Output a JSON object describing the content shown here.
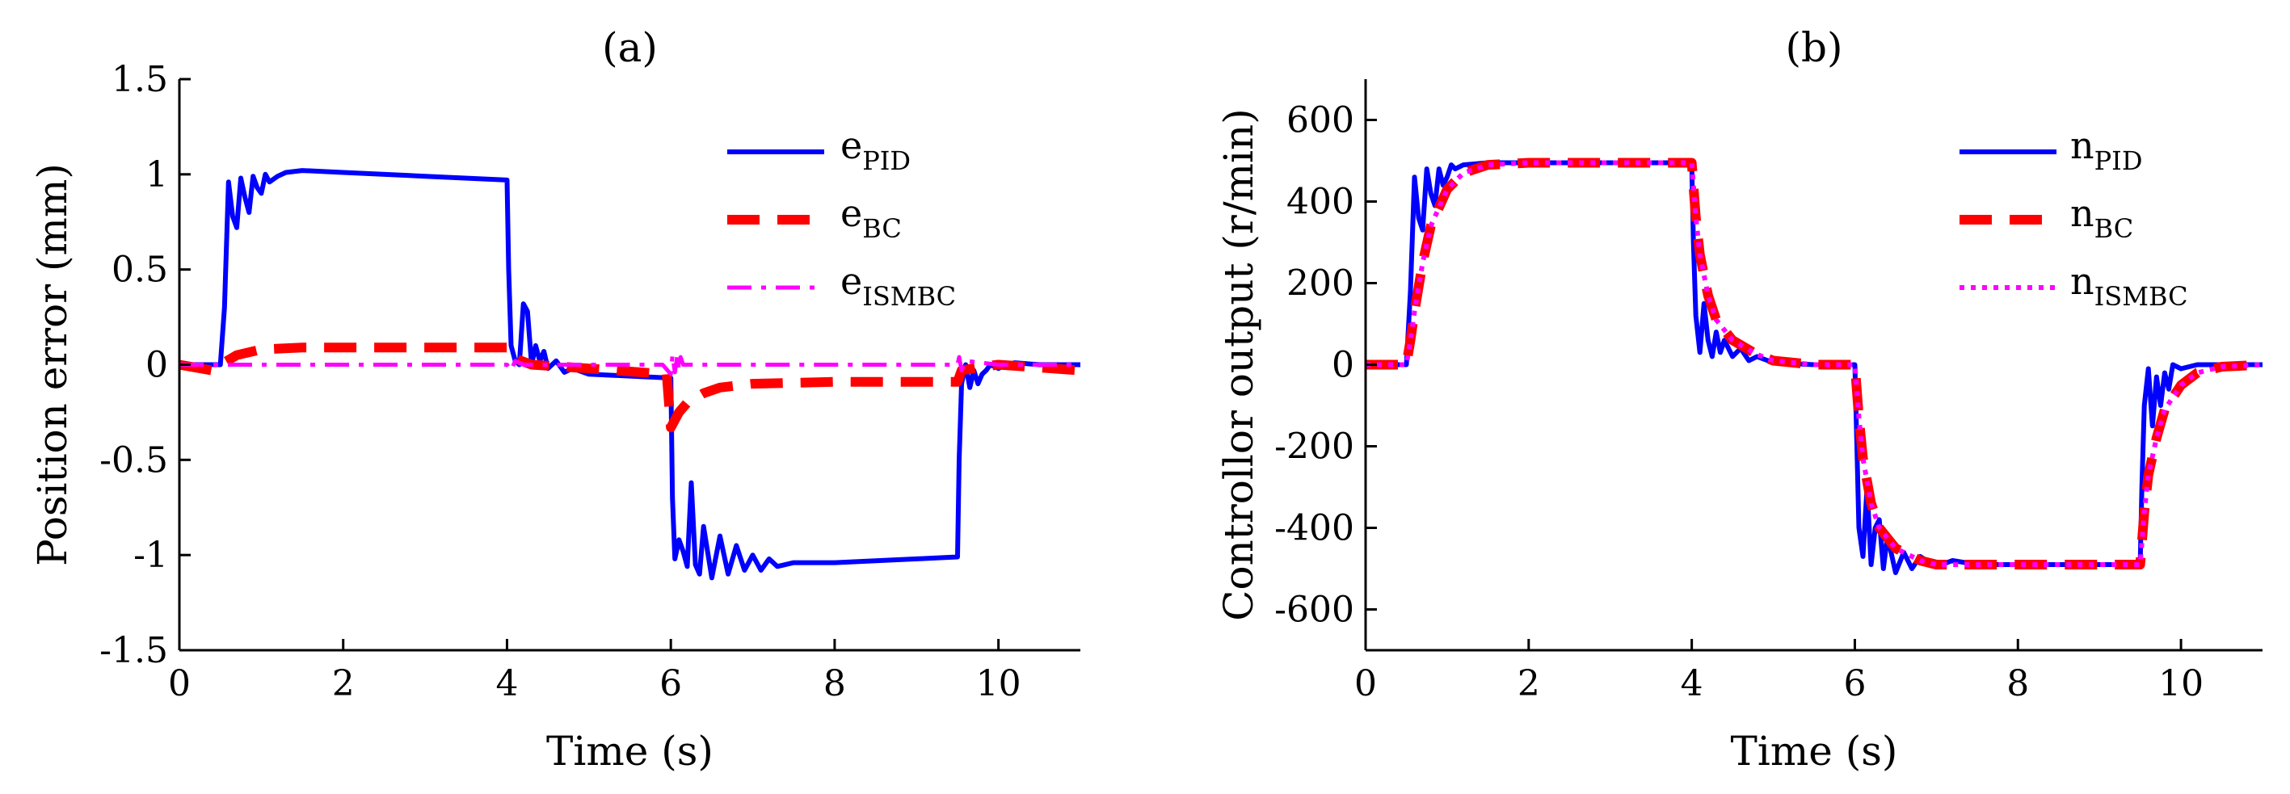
{
  "chart_data": [
    {
      "type": "line",
      "title": "(a)",
      "xlabel": "Time (s)",
      "ylabel": "Position error (mm)",
      "xlim": [
        0,
        11
      ],
      "ylim": [
        -1.5,
        1.5
      ],
      "xticks": [
        0,
        2,
        4,
        6,
        8,
        10
      ],
      "xtick_labels": [
        "0",
        "2",
        "4",
        "6",
        "8",
        "10"
      ],
      "yticks": [
        -1.5,
        -1,
        -0.5,
        0,
        0.5,
        1,
        1.5
      ],
      "ytick_labels": [
        "-1.5",
        "-1",
        "-0.5",
        "0",
        "0.5",
        "1",
        "1.5"
      ],
      "legend_position": "top-right",
      "series": [
        {
          "name": "e_PID",
          "label_main": "e",
          "label_sub": "PID",
          "color": "#0000ff",
          "style": "solid",
          "x": [
            0,
            0.5,
            0.55,
            0.6,
            0.65,
            0.7,
            0.75,
            0.8,
            0.85,
            0.9,
            0.95,
            1.0,
            1.05,
            1.1,
            1.2,
            1.3,
            1.5,
            2,
            3,
            4,
            4.02,
            4.05,
            4.1,
            4.15,
            4.2,
            4.25,
            4.3,
            4.35,
            4.4,
            4.45,
            4.5,
            4.6,
            4.7,
            4.8,
            5,
            5.5,
            6,
            6.02,
            6.05,
            6.1,
            6.15,
            6.2,
            6.25,
            6.3,
            6.35,
            6.4,
            6.5,
            6.6,
            6.7,
            6.8,
            6.9,
            7.0,
            7.1,
            7.2,
            7.3,
            7.5,
            8,
            9,
            9.5,
            9.52,
            9.55,
            9.6,
            9.65,
            9.7,
            9.75,
            9.8,
            9.85,
            9.9,
            10.0,
            10.1,
            10.2,
            10.5,
            11
          ],
          "y": [
            0,
            0,
            0.3,
            0.96,
            0.78,
            0.72,
            0.98,
            0.88,
            0.8,
            0.99,
            0.93,
            0.9,
            1.0,
            0.96,
            0.99,
            1.01,
            1.02,
            1.01,
            0.99,
            0.97,
            0.5,
            0.1,
            0.02,
            0.0,
            0.32,
            0.28,
            0.0,
            0.1,
            0.02,
            0.07,
            -0.02,
            0.02,
            -0.04,
            -0.02,
            -0.05,
            -0.06,
            -0.07,
            -0.7,
            -1.02,
            -0.92,
            -0.98,
            -1.06,
            -0.62,
            -1.05,
            -1.1,
            -0.85,
            -1.12,
            -0.9,
            -1.1,
            -0.95,
            -1.08,
            -1.0,
            -1.08,
            -1.02,
            -1.06,
            -1.04,
            -1.04,
            -1.02,
            -1.01,
            -0.5,
            -0.1,
            0.0,
            -0.12,
            -0.03,
            -0.1,
            -0.05,
            -0.03,
            0.0,
            -0.02,
            0.0,
            0.01,
            0.0,
            0.0
          ]
        },
        {
          "name": "e_BC",
          "label_main": "e",
          "label_sub": "BC",
          "color": "#ff0000",
          "style": "dashed",
          "x": [
            0,
            0.4,
            0.5,
            0.7,
            1.0,
            1.5,
            2,
            3,
            4,
            4.05,
            4.3,
            5,
            5.95,
            6.0,
            6.1,
            6.2,
            6.4,
            6.6,
            7,
            8,
            9,
            9.5,
            9.55,
            9.8,
            10,
            11
          ],
          "y": [
            0,
            -0.03,
            0.0,
            0.05,
            0.08,
            0.09,
            0.09,
            0.09,
            0.09,
            0.04,
            0.0,
            -0.02,
            -0.05,
            -0.33,
            -0.25,
            -0.2,
            -0.15,
            -0.12,
            -0.1,
            -0.09,
            -0.09,
            -0.09,
            -0.03,
            -0.01,
            0.0,
            -0.03
          ]
        },
        {
          "name": "e_ISMBC",
          "label_main": "e",
          "label_sub": "ISMBC",
          "color": "#ff00ff",
          "style": "dash-dot",
          "x": [
            0,
            0.5,
            1,
            2,
            3,
            4,
            4.05,
            4.1,
            4.2,
            5,
            5.9,
            6.0,
            6.02,
            6.05,
            6.08,
            6.1,
            6.12,
            6.15,
            6.3,
            7,
            8,
            9,
            9.5,
            9.52,
            9.55,
            9.6,
            10,
            11
          ],
          "y": [
            0,
            0,
            0,
            0,
            0,
            0,
            -0.03,
            0.02,
            0,
            0,
            0,
            -0.05,
            0.05,
            -0.04,
            0.05,
            -0.03,
            0.04,
            0.0,
            0.0,
            0,
            0,
            0,
            0.0,
            0.04,
            -0.03,
            0.02,
            0,
            0
          ]
        }
      ]
    },
    {
      "type": "line",
      "title": "(b)",
      "xlabel": "Time (s)",
      "ylabel": "Controllor output (r/min)",
      "xlim": [
        0,
        11
      ],
      "ylim": [
        -700,
        700
      ],
      "xticks": [
        0,
        2,
        4,
        6,
        8,
        10
      ],
      "xtick_labels": [
        "0",
        "2",
        "4",
        "6",
        "8",
        "10"
      ],
      "yticks": [
        -600,
        -400,
        -200,
        0,
        200,
        400,
        600
      ],
      "ytick_labels": [
        "-600",
        "-400",
        "-200",
        "0",
        "200",
        "400",
        "600"
      ],
      "legend_position": "top-right",
      "series": [
        {
          "name": "n_PID",
          "label_main": "n",
          "label_sub": "PID",
          "color": "#0000ff",
          "style": "solid",
          "x": [
            0,
            0.5,
            0.55,
            0.6,
            0.65,
            0.7,
            0.75,
            0.8,
            0.85,
            0.9,
            0.95,
            1.0,
            1.05,
            1.1,
            1.2,
            1.5,
            2,
            3,
            4,
            4.02,
            4.05,
            4.1,
            4.15,
            4.2,
            4.25,
            4.3,
            4.35,
            4.4,
            4.5,
            4.6,
            4.7,
            4.8,
            5,
            5.5,
            6,
            6.02,
            6.05,
            6.1,
            6.15,
            6.2,
            6.25,
            6.3,
            6.35,
            6.4,
            6.5,
            6.6,
            6.7,
            6.8,
            7.0,
            7.2,
            7.5,
            8,
            9,
            9.5,
            9.52,
            9.55,
            9.6,
            9.65,
            9.7,
            9.75,
            9.8,
            9.85,
            9.9,
            10.0,
            10.2,
            10.5,
            11
          ],
          "y": [
            0,
            0,
            180,
            460,
            360,
            330,
            480,
            420,
            390,
            480,
            440,
            460,
            490,
            480,
            490,
            495,
            495,
            495,
            495,
            300,
            120,
            30,
            150,
            60,
            20,
            80,
            30,
            60,
            20,
            40,
            10,
            20,
            5,
            0,
            0,
            -160,
            -400,
            -470,
            -300,
            -490,
            -400,
            -380,
            -500,
            -420,
            -510,
            -460,
            -500,
            -470,
            -495,
            -480,
            -490,
            -490,
            -490,
            -490,
            -300,
            -100,
            -10,
            -150,
            -30,
            -100,
            -20,
            -60,
            0,
            -10,
            0,
            0,
            0
          ]
        },
        {
          "name": "n_BC",
          "label_main": "n",
          "label_sub": "BC",
          "color": "#ff0000",
          "style": "dashed",
          "x": [
            0,
            0.5,
            0.55,
            0.6,
            0.7,
            0.8,
            1.0,
            1.2,
            1.5,
            2,
            3,
            4,
            4.05,
            4.1,
            4.2,
            4.3,
            4.5,
            4.8,
            5,
            5.5,
            6,
            6.05,
            6.1,
            6.2,
            6.3,
            6.5,
            6.8,
            7,
            7.5,
            8,
            9,
            9.5,
            9.55,
            9.6,
            9.7,
            9.8,
            10.0,
            10.2,
            10.5,
            11
          ],
          "y": [
            0,
            0,
            60,
            130,
            250,
            340,
            430,
            470,
            490,
            495,
            495,
            495,
            360,
            270,
            170,
            110,
            60,
            25,
            10,
            0,
            0,
            -130,
            -230,
            -340,
            -400,
            -450,
            -480,
            -490,
            -490,
            -490,
            -490,
            -490,
            -360,
            -270,
            -180,
            -110,
            -50,
            -20,
            -5,
            0
          ]
        },
        {
          "name": "n_ISMBC",
          "label_main": "n",
          "label_sub": "ISMBC",
          "color": "#ff00ff",
          "style": "dotted",
          "x": [
            0,
            0.5,
            0.55,
            0.6,
            0.7,
            0.8,
            1.0,
            1.2,
            1.5,
            2,
            3,
            4,
            4.05,
            4.1,
            4.2,
            4.3,
            4.5,
            4.8,
            5,
            5.5,
            6,
            6.05,
            6.1,
            6.2,
            6.3,
            6.5,
            6.8,
            7,
            7.5,
            8,
            9,
            9.5,
            9.55,
            9.6,
            9.7,
            9.8,
            10.0,
            10.2,
            10.5,
            11
          ],
          "y": [
            0,
            0,
            60,
            130,
            250,
            340,
            430,
            470,
            490,
            495,
            495,
            495,
            360,
            270,
            170,
            110,
            60,
            25,
            10,
            0,
            0,
            -130,
            -230,
            -340,
            -400,
            -450,
            -480,
            -490,
            -490,
            -490,
            -490,
            -490,
            -360,
            -270,
            -180,
            -110,
            -50,
            -20,
            -5,
            0
          ]
        }
      ]
    }
  ]
}
